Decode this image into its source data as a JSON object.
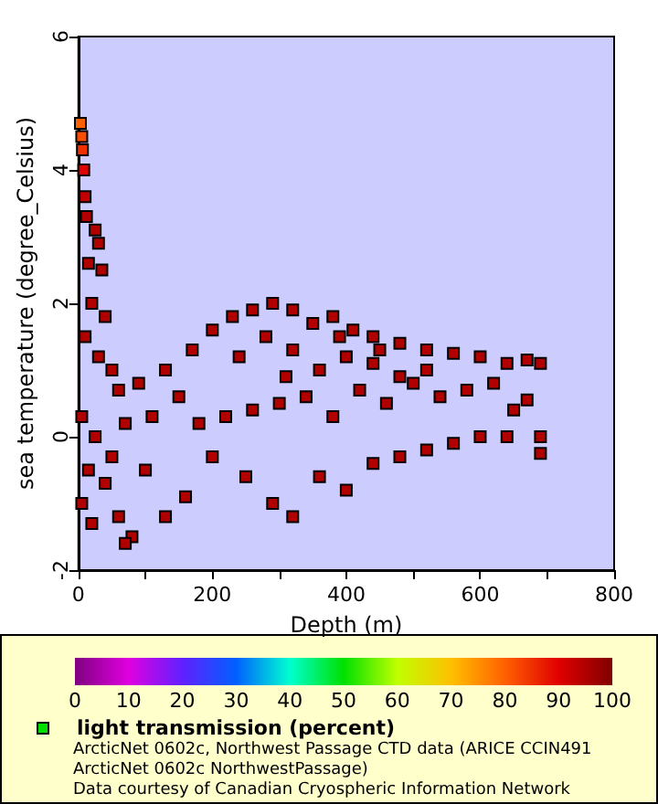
{
  "chart_data": {
    "type": "scatter",
    "xlabel": "Depth (m)",
    "ylabel": "sea temperature (degree_Celsius)",
    "clabel": "light transmission (percent)",
    "annotations": [
      "ArcticNet 0602c, Northwest Passage CTD data (ARICE CCIN491 ArcticNet 0602c NorthwestPassage)",
      "Data courtesy of Canadian Cryospheric Information Network"
    ],
    "marker": "square",
    "x": [
      3,
      5,
      6,
      8,
      10,
      12,
      25,
      30,
      15,
      35,
      20,
      40,
      10,
      30,
      50,
      60,
      5,
      25,
      15,
      40,
      5,
      20,
      60,
      80,
      50,
      70,
      70,
      100,
      130,
      160,
      200,
      250,
      290,
      320,
      360,
      400,
      440,
      480,
      520,
      560,
      600,
      640,
      690,
      110,
      150,
      180,
      220,
      260,
      300,
      340,
      380,
      420,
      460,
      500,
      540,
      580,
      620,
      650,
      670,
      690,
      90,
      130,
      170,
      200,
      230,
      260,
      290,
      320,
      350,
      380,
      410,
      440,
      480,
      520,
      560,
      600,
      640,
      670,
      690,
      240,
      280,
      320,
      360,
      400,
      440,
      480,
      520,
      310,
      390,
      450
    ],
    "values": [
      4.7,
      4.5,
      4.3,
      4.0,
      3.6,
      3.3,
      3.1,
      2.9,
      2.6,
      2.5,
      2.0,
      1.8,
      1.5,
      1.2,
      1.0,
      0.7,
      0.3,
      0.0,
      -0.5,
      -0.7,
      -1.0,
      -1.3,
      -1.2,
      -1.5,
      -0.3,
      0.2,
      -1.6,
      -0.5,
      -1.2,
      -0.9,
      -0.3,
      -0.6,
      -1.0,
      -1.2,
      -0.6,
      -0.8,
      -0.4,
      -0.3,
      -0.2,
      -0.1,
      0.0,
      0.0,
      0.0,
      0.3,
      0.6,
      0.2,
      0.3,
      0.4,
      0.5,
      0.6,
      0.3,
      0.7,
      0.5,
      0.8,
      0.6,
      0.7,
      0.8,
      0.4,
      0.55,
      -0.25,
      0.8,
      1.0,
      1.3,
      1.6,
      1.8,
      1.9,
      2.0,
      1.9,
      1.7,
      1.8,
      1.6,
      1.5,
      1.4,
      1.3,
      1.25,
      1.2,
      1.1,
      1.15,
      1.1,
      1.2,
      1.5,
      1.3,
      1.0,
      1.2,
      1.1,
      0.9,
      1.0,
      0.9,
      1.5,
      1.3
    ],
    "cvalues": [
      80,
      82,
      85,
      90,
      93,
      95,
      95,
      95,
      95,
      95,
      95,
      95,
      95,
      95,
      95,
      95,
      95,
      95,
      95,
      95,
      95,
      95,
      95,
      95,
      95,
      95,
      95,
      95,
      95,
      95,
      95,
      95,
      95,
      95,
      95,
      95,
      95,
      95,
      95,
      95,
      95,
      95,
      95,
      95,
      95,
      95,
      95,
      95,
      95,
      95,
      95,
      95,
      95,
      95,
      95,
      95,
      95,
      95,
      95,
      95,
      95,
      95,
      95,
      95,
      95,
      95,
      95,
      95,
      95,
      95,
      95,
      95,
      95,
      95,
      95,
      95,
      95,
      95,
      95,
      95,
      95,
      95,
      95,
      95,
      95,
      95,
      95,
      95,
      95,
      95
    ],
    "xlim": [
      0,
      800
    ],
    "xticks": [
      0,
      {
        "value": 100,
        "label": null
      },
      200,
      {
        "value": 300,
        "label": null
      },
      400,
      {
        "value": 500,
        "label": null
      },
      600,
      {
        "value": 700,
        "label": null
      },
      800
    ],
    "ylim": [
      -2,
      6
    ],
    "yticks": [
      -2,
      0,
      2,
      4,
      6
    ],
    "clim": [
      0,
      100
    ],
    "cticks": [
      0,
      10,
      20,
      30,
      40,
      50,
      60,
      70,
      80,
      90,
      100
    ]
  }
}
